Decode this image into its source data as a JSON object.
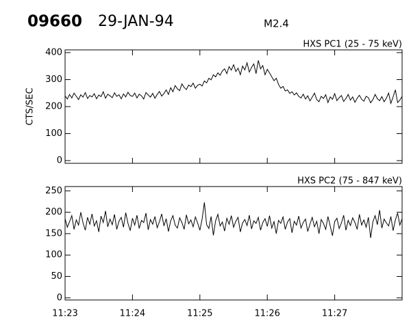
{
  "header": {
    "event": "09660",
    "date": "29-JAN-94",
    "class": "M2.4"
  },
  "chart_data": [
    {
      "type": "line",
      "ylabel": "CTS/SEC",
      "xlim": [
        40980,
        41280
      ],
      "xticks": [
        40980,
        41040,
        41100,
        41160,
        41220
      ],
      "ylim": [
        -10,
        410
      ],
      "yticks": [
        0,
        100,
        200,
        300,
        400
      ],
      "x": [
        40980,
        40982,
        40984,
        40986,
        40988,
        40990,
        40992,
        40994,
        40996,
        40998,
        41000,
        41002,
        41004,
        41006,
        41008,
        41010,
        41012,
        41014,
        41016,
        41018,
        41020,
        41022,
        41024,
        41026,
        41028,
        41030,
        41032,
        41034,
        41036,
        41038,
        41040,
        41042,
        41044,
        41046,
        41048,
        41050,
        41052,
        41054,
        41056,
        41058,
        41060,
        41062,
        41064,
        41066,
        41068,
        41070,
        41072,
        41074,
        41076,
        41078,
        41080,
        41082,
        41084,
        41086,
        41088,
        41090,
        41092,
        41094,
        41096,
        41098,
        41100,
        41102,
        41104,
        41106,
        41108,
        41110,
        41112,
        41114,
        41116,
        41118,
        41120,
        41122,
        41124,
        41126,
        41128,
        41130,
        41132,
        41134,
        41136,
        41138,
        41140,
        41142,
        41144,
        41146,
        41148,
        41150,
        41152,
        41154,
        41156,
        41158,
        41160,
        41162,
        41164,
        41166,
        41168,
        41170,
        41172,
        41174,
        41176,
        41178,
        41180,
        41182,
        41184,
        41186,
        41188,
        41190,
        41192,
        41194,
        41196,
        41198,
        41200,
        41202,
        41204,
        41206,
        41208,
        41210,
        41212,
        41214,
        41216,
        41218,
        41220,
        41222,
        41224,
        41226,
        41228,
        41230,
        41232,
        41234,
        41236,
        41238,
        41240,
        41242,
        41244,
        41246,
        41248,
        41250,
        41252,
        41254,
        41256,
        41258,
        41260,
        41262,
        41264,
        41266,
        41268,
        41270,
        41272,
        41274,
        41276,
        41278,
        41280
      ],
      "series": [
        {
          "name": "HXS PC1 (25 - 75 keV)",
          "color": "#000000",
          "values": [
            240,
            228,
            245,
            232,
            250,
            238,
            226,
            244,
            235,
            252,
            230,
            241,
            236,
            248,
            229,
            243,
            237,
            255,
            231,
            246,
            240,
            233,
            251,
            238,
            244,
            229,
            247,
            236,
            253,
            241,
            238,
            250,
            232,
            246,
            240,
            228,
            252,
            243,
            235,
            249,
            231,
            245,
            256,
            239,
            248,
            262,
            245,
            270,
            255,
            278,
            266,
            259,
            284,
            271,
            263,
            280,
            274,
            287,
            268,
            279,
            283,
            276,
            295,
            288,
            305,
            299,
            318,
            310,
            325,
            316,
            332,
            340,
            322,
            348,
            335,
            355,
            330,
            342,
            318,
            350,
            336,
            362,
            328,
            345,
            358,
            322,
            371,
            340,
            352,
            318,
            338,
            325,
            310,
            296,
            305,
            282,
            268,
            275,
            258,
            262,
            249,
            255,
            243,
            251,
            238,
            232,
            246,
            228,
            240,
            221,
            235,
            250,
            226,
            218,
            238,
            230,
            244,
            215,
            236,
            227,
            248,
            222,
            233,
            241,
            219,
            230,
            245,
            224,
            236,
            216,
            231,
            242,
            227,
            220,
            238,
            233,
            214,
            226,
            245,
            229,
            222,
            237,
            218,
            231,
            250,
            212,
            236,
            262,
            215,
            224,
            238
          ]
        }
      ]
    },
    {
      "type": "line",
      "xlim": [
        40980,
        41280
      ],
      "xticks": [
        {
          "value": 40980,
          "label": "11:23"
        },
        {
          "value": 41040,
          "label": "11:24"
        },
        {
          "value": 41100,
          "label": "11:25"
        },
        {
          "value": 41160,
          "label": "11:26"
        },
        {
          "value": 41220,
          "label": "11:27"
        }
      ],
      "ylim": [
        -5,
        260
      ],
      "yticks": [
        0,
        50,
        100,
        150,
        200,
        250
      ],
      "x": [
        40980,
        40982,
        40984,
        40986,
        40988,
        40990,
        40992,
        40994,
        40996,
        40998,
        41000,
        41002,
        41004,
        41006,
        41008,
        41010,
        41012,
        41014,
        41016,
        41018,
        41020,
        41022,
        41024,
        41026,
        41028,
        41030,
        41032,
        41034,
        41036,
        41038,
        41040,
        41042,
        41044,
        41046,
        41048,
        41050,
        41052,
        41054,
        41056,
        41058,
        41060,
        41062,
        41064,
        41066,
        41068,
        41070,
        41072,
        41074,
        41076,
        41078,
        41080,
        41082,
        41084,
        41086,
        41088,
        41090,
        41092,
        41094,
        41096,
        41098,
        41100,
        41102,
        41104,
        41106,
        41108,
        41110,
        41112,
        41114,
        41116,
        41118,
        41120,
        41122,
        41124,
        41126,
        41128,
        41130,
        41132,
        41134,
        41136,
        41138,
        41140,
        41142,
        41144,
        41146,
        41148,
        41150,
        41152,
        41154,
        41156,
        41158,
        41160,
        41162,
        41164,
        41166,
        41168,
        41170,
        41172,
        41174,
        41176,
        41178,
        41180,
        41182,
        41184,
        41186,
        41188,
        41190,
        41192,
        41194,
        41196,
        41198,
        41200,
        41202,
        41204,
        41206,
        41208,
        41210,
        41212,
        41214,
        41216,
        41218,
        41220,
        41222,
        41224,
        41226,
        41228,
        41230,
        41232,
        41234,
        41236,
        41238,
        41240,
        41242,
        41244,
        41246,
        41248,
        41250,
        41252,
        41254,
        41256,
        41258,
        41260,
        41262,
        41264,
        41266,
        41268,
        41270,
        41272,
        41274,
        41276,
        41278,
        41280
      ],
      "series": [
        {
          "name": "HXS PC2 (75 - 847 keV)",
          "color": "#000000",
          "values": [
            185,
            165,
            178,
            192,
            160,
            182,
            170,
            200,
            175,
            158,
            188,
            172,
            196,
            168,
            180,
            154,
            191,
            176,
            203,
            166,
            184,
            171,
            195,
            160,
            179,
            188,
            165,
            199,
            174,
            157,
            186,
            170,
            193,
            162,
            181,
            176,
            198,
            159,
            183,
            172,
            190,
            164,
            178,
            196,
            168,
            185,
            155,
            180,
            192,
            170,
            163,
            187,
            176,
            160,
            194,
            173,
            182,
            166,
            189,
            175,
            158,
            184,
            223,
            171,
            162,
            190,
            146,
            180,
            195,
            168,
            177,
            156,
            186,
            172,
            192,
            165,
            179,
            188,
            154,
            175,
            183,
            169,
            193,
            161,
            180,
            174,
            188,
            158,
            176,
            185,
            167,
            192,
            163,
            178,
            150,
            181,
            174,
            189,
            160,
            177,
            185,
            152,
            179,
            170,
            191,
            163,
            176,
            184,
            155,
            172,
            188,
            166,
            179,
            150,
            183,
            174,
            160,
            190,
            168,
            145,
            178,
            186,
            162,
            175,
            193,
            158,
            181,
            169,
            187,
            176,
            160,
            195,
            170,
            182,
            165,
            188,
            140,
            178,
            192,
            171,
            205,
            163,
            184,
            175,
            168,
            190,
            157,
            182,
            198,
            170,
            185
          ]
        }
      ]
    }
  ]
}
